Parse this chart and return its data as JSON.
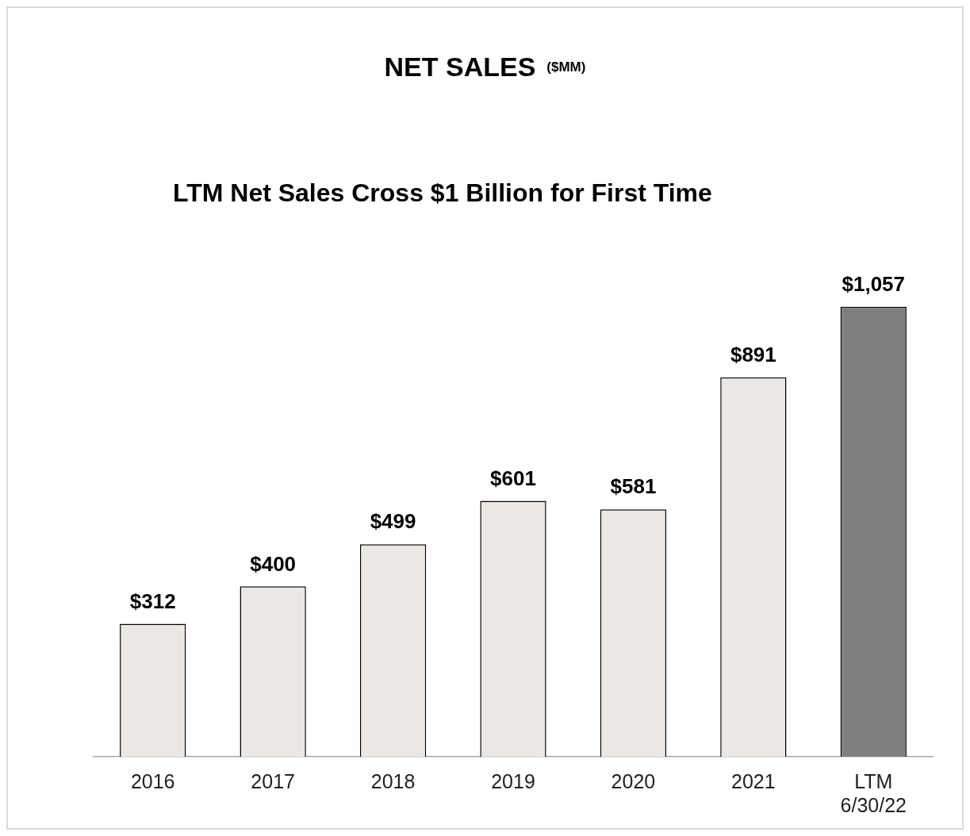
{
  "chart_data": {
    "type": "bar",
    "title": "NET SALES",
    "annotations": [
      "($MM)"
    ],
    "subtitle": "LTM Net Sales Cross $1 Billion for First Time",
    "categories": [
      "2016",
      "2017",
      "2018",
      "2019",
      "2020",
      "2021",
      "LTM 6/30/22"
    ],
    "values": [
      312,
      400,
      499,
      601,
      581,
      891,
      1057
    ],
    "colors": [
      "#ede7e4",
      "#ede7e4",
      "#ede7e4",
      "#ede7e4",
      "#ede7e4",
      "#ede7e4",
      "#7f7f7f"
    ],
    "value_labels": [
      "$312",
      "$400",
      "$499",
      "$601",
      "$581",
      "$891",
      "$1,057"
    ],
    "tick_labels": "x",
    "grid": false,
    "legend": false
  }
}
